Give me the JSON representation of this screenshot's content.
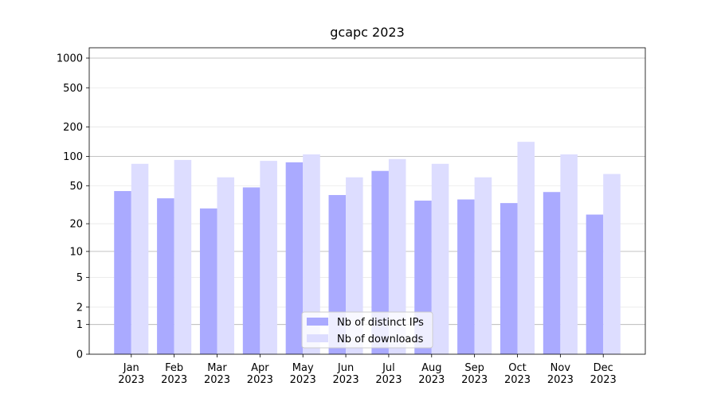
{
  "chart_data": {
    "type": "bar",
    "title": "gcapc 2023",
    "categories": [
      "Jan\n2023",
      "Feb\n2023",
      "Mar\n2023",
      "Apr\n2023",
      "May\n2023",
      "Jun\n2023",
      "Jul\n2023",
      "Aug\n2023",
      "Sep\n2023",
      "Oct\n2023",
      "Nov\n2023",
      "Dec\n2023"
    ],
    "series": [
      {
        "name": "Nb of distinct IPs",
        "color": "#aaaaff",
        "values": [
          44,
          37,
          29,
          48,
          87,
          40,
          71,
          35,
          36,
          33,
          43,
          25
        ]
      },
      {
        "name": "Nb of downloads",
        "color": "#ddddff",
        "values": [
          84,
          92,
          61,
          90,
          105,
          61,
          94,
          84,
          61,
          141,
          105,
          66
        ]
      }
    ],
    "yscale": "log1p",
    "ylim": [
      0,
      1273
    ],
    "yticks": [
      0,
      1,
      2,
      5,
      10,
      20,
      50,
      100,
      200,
      500,
      1000
    ],
    "grid": true,
    "legend": "lower center"
  }
}
